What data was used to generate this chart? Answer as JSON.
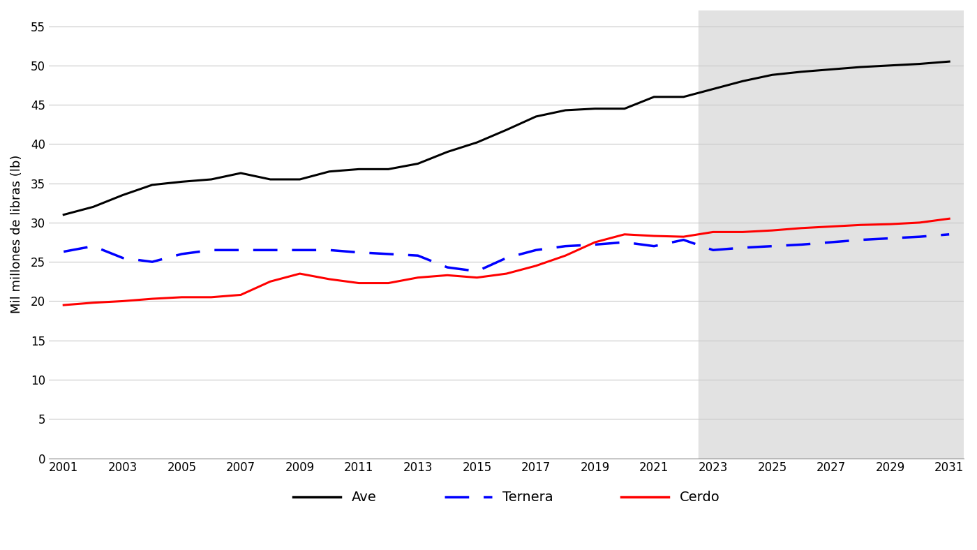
{
  "years": [
    2001,
    2002,
    2003,
    2004,
    2005,
    2006,
    2007,
    2008,
    2009,
    2010,
    2011,
    2012,
    2013,
    2014,
    2015,
    2016,
    2017,
    2018,
    2019,
    2020,
    2021,
    2022,
    2023,
    2024,
    2025,
    2026,
    2027,
    2028,
    2029,
    2030,
    2031
  ],
  "ave": [
    31.0,
    32.0,
    33.5,
    34.8,
    35.2,
    35.5,
    36.3,
    35.5,
    35.5,
    36.5,
    36.8,
    36.8,
    37.5,
    39.0,
    40.2,
    41.8,
    43.5,
    44.3,
    44.5,
    44.5,
    46.0,
    46.0,
    47.0,
    48.0,
    48.8,
    49.2,
    49.5,
    49.8,
    50.0,
    50.2,
    50.5
  ],
  "ternera": [
    26.3,
    27.0,
    25.5,
    25.0,
    26.0,
    26.5,
    26.5,
    26.5,
    26.5,
    26.5,
    26.2,
    26.0,
    25.8,
    24.3,
    23.8,
    25.5,
    26.5,
    27.0,
    27.2,
    27.5,
    27.0,
    27.8,
    26.5,
    26.8,
    27.0,
    27.2,
    27.5,
    27.8,
    28.0,
    28.2,
    28.5
  ],
  "cerdo": [
    19.5,
    19.8,
    20.0,
    20.3,
    20.5,
    20.5,
    20.8,
    22.5,
    23.5,
    22.8,
    22.3,
    22.3,
    23.0,
    23.3,
    23.0,
    23.5,
    24.5,
    25.8,
    27.5,
    28.5,
    28.3,
    28.2,
    28.8,
    28.8,
    29.0,
    29.3,
    29.5,
    29.7,
    29.8,
    30.0,
    30.5
  ],
  "forecast_start": 2022.5,
  "forecast_color": "#e2e2e2",
  "ave_color": "#000000",
  "ternera_color": "#0000ff",
  "cerdo_color": "#ff0000",
  "ylabel": "Mil millones de libras (lb)",
  "ylim": [
    0,
    57
  ],
  "yticks": [
    0,
    5,
    10,
    15,
    20,
    25,
    30,
    35,
    40,
    45,
    50,
    55
  ],
  "xlim_left": 2000.5,
  "xlim_right": 2031.5,
  "xticks": [
    2001,
    2003,
    2005,
    2007,
    2009,
    2011,
    2013,
    2015,
    2017,
    2019,
    2021,
    2023,
    2025,
    2027,
    2029,
    2031
  ],
  "legend_labels": [
    "Ave",
    "Ternera",
    "Cerdo"
  ],
  "background_color": "#ffffff",
  "grid_color": "#c8c8c8",
  "tick_labelsize": 12,
  "ylabel_fontsize": 13,
  "legend_fontsize": 14
}
